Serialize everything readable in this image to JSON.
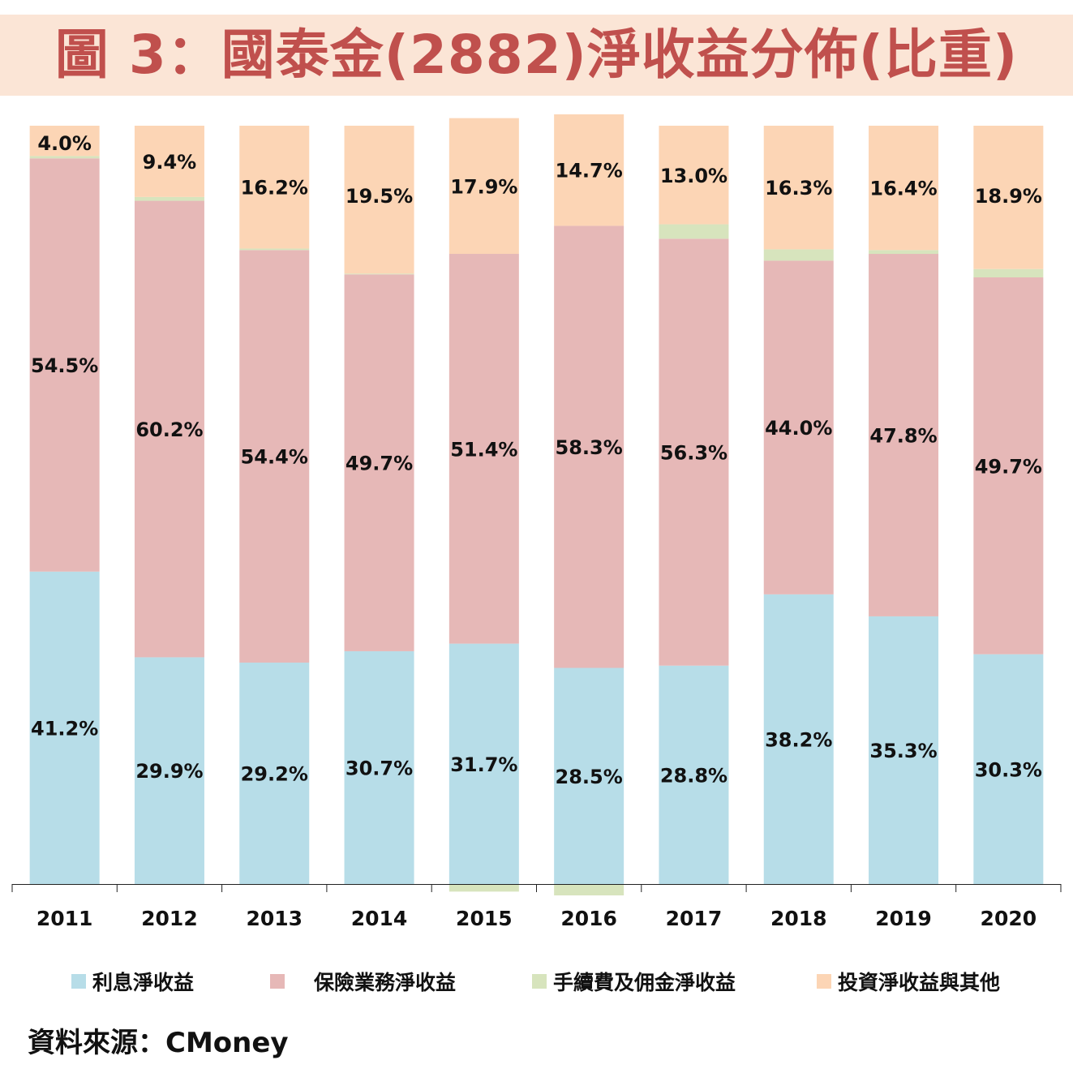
{
  "title": "圖 3：國泰金(2882)淨收益分佈(比重)",
  "source": "資料來源：CMoney",
  "colors": {
    "title": "#c0504d",
    "title_bg": "#fbe5d6"
  },
  "chart_data": {
    "type": "bar",
    "stacked": true,
    "title": "圖 3：國泰金(2882)淨收益分佈(比重)",
    "xlabel": "",
    "ylabel": "",
    "ylim": [
      -1.5,
      100
    ],
    "legend_position": "bottom",
    "grid": false,
    "categories": [
      "2011",
      "2012",
      "2013",
      "2014",
      "2015",
      "2016",
      "2017",
      "2018",
      "2019",
      "2020"
    ],
    "series": [
      {
        "name": "利息淨收益",
        "color": "#b7dde8",
        "values": [
          41.2,
          29.9,
          29.2,
          30.7,
          31.7,
          28.5,
          28.8,
          38.2,
          35.3,
          30.3
        ],
        "labels": [
          "41.2%",
          "29.9%",
          "29.2%",
          "30.7%",
          "31.7%",
          "28.5%",
          "28.8%",
          "38.2%",
          "35.3%",
          "30.3%"
        ]
      },
      {
        "name": "保險業務淨收益",
        "color": "#e6b8b7",
        "values": [
          54.5,
          60.2,
          54.4,
          49.7,
          51.4,
          58.3,
          56.3,
          44.0,
          47.8,
          49.7
        ],
        "labels": [
          "54.5%",
          "60.2%",
          "54.4%",
          "49.7%",
          "51.4%",
          "58.3%",
          "56.3%",
          "44.0%",
          "47.8%",
          "49.7%"
        ]
      },
      {
        "name": "手續費及佣金淨收益",
        "color": "#d7e4bd",
        "values": [
          0.3,
          0.5,
          0.2,
          0.1,
          -1.0,
          -1.5,
          1.9,
          1.5,
          0.5,
          1.1
        ],
        "labels": []
      },
      {
        "name": "投資淨收益與其他",
        "color": "#fcd5b5",
        "values": [
          4.0,
          9.4,
          16.2,
          19.5,
          17.9,
          14.7,
          13.0,
          16.3,
          16.4,
          18.9
        ],
        "labels": [
          "4.0%",
          "9.4%",
          "16.2%",
          "19.5%",
          "17.9%",
          "14.7%",
          "13.0%",
          "16.3%",
          "16.4%",
          "18.9%"
        ]
      }
    ]
  }
}
